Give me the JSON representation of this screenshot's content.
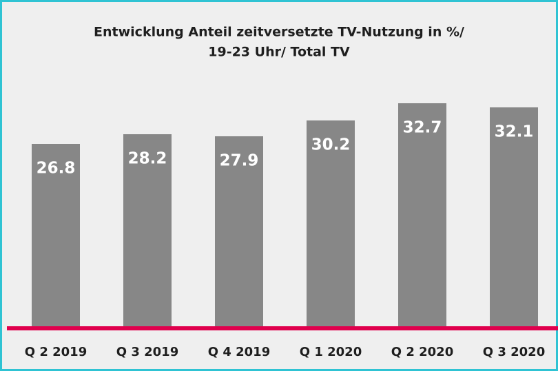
{
  "chart_data": {
    "type": "bar",
    "title": [
      "Entwicklung Anteil zeitversetzte TV-Nutzung in %/",
      "19-23 Uhr/ Total TV"
    ],
    "categories": [
      "Q 2 2019",
      "Q 3 2019",
      "Q 4 2019",
      "Q 1 2020",
      "Q 2 2020",
      "Q 3 2020"
    ],
    "values": [
      26.8,
      28.2,
      27.9,
      30.2,
      32.7,
      32.1
    ],
    "color": "#878787",
    "baseline_color": "#e0004d"
  }
}
